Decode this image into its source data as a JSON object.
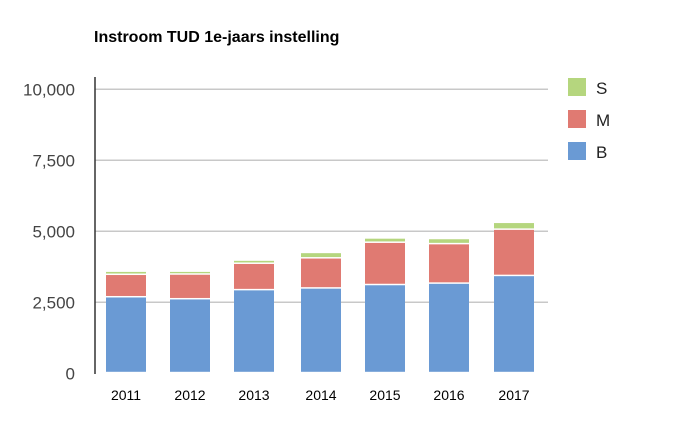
{
  "chart_data": {
    "type": "bar",
    "stacked": true,
    "title": "Instroom TUD 1e-jaars instelling",
    "xlabel": "",
    "ylabel": "",
    "categories": [
      "2011",
      "2012",
      "2013",
      "2014",
      "2015",
      "2016",
      "2017"
    ],
    "series": [
      {
        "name": "B",
        "color": "#6a9ad4",
        "values": [
          2670,
          2600,
          2920,
          2980,
          3100,
          3150,
          3420
        ]
      },
      {
        "name": "M",
        "color": "#e07a72",
        "values": [
          790,
          870,
          930,
          1060,
          1490,
          1390,
          1630
        ]
      },
      {
        "name": "S",
        "color": "#b5d67e",
        "values": [
          110,
          100,
          110,
          190,
          150,
          180,
          240
        ]
      }
    ],
    "ylim": [
      0,
      10000
    ],
    "yticks": [
      "0",
      "2,500",
      "5,000",
      "7,500",
      "10,000"
    ],
    "ytick_values": [
      0,
      2500,
      5000,
      7500,
      10000
    ],
    "grid": true,
    "legend_position": "right"
  }
}
